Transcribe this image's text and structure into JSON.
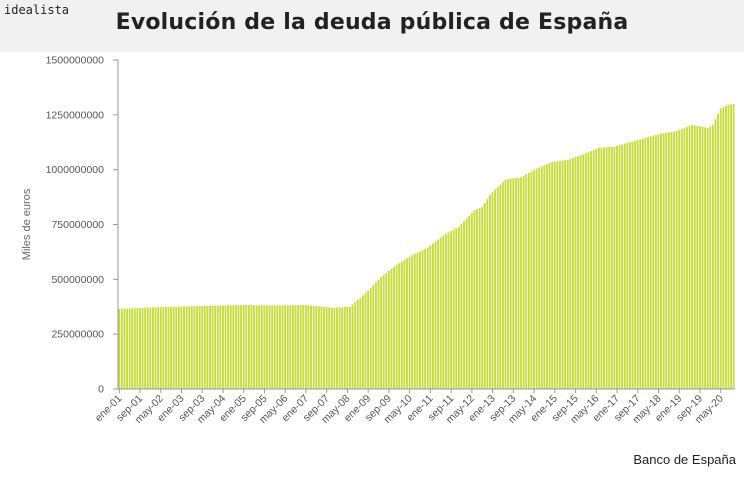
{
  "header": {
    "brand": "idealista",
    "title": "Evolución de la deuda pública de España"
  },
  "footer": {
    "source": "Banco de España"
  },
  "colors": {
    "bar": "#c5dc3a",
    "bar_edge": "#a9c22a",
    "axis": "#999999",
    "grid": "#e6e6e6"
  },
  "chart_data": {
    "type": "bar",
    "title": "Evolución de la deuda pública de España",
    "ylabel": "Miles de euros",
    "xlabel": "",
    "ylim": [
      0,
      1500000000
    ],
    "yticks": [
      0,
      250000000,
      500000000,
      750000000,
      1000000000,
      1250000000,
      1500000000
    ],
    "ytick_labels": [
      "0",
      "250000000",
      "500000000",
      "750000000",
      "1000000000",
      "1250000000",
      "1500000000"
    ],
    "x_start": "2001-01",
    "x_end": "2020-10",
    "xticks": [
      "2001-01",
      "2001-09",
      "2002-05",
      "2003-01",
      "2003-09",
      "2004-05",
      "2005-01",
      "2005-09",
      "2006-05",
      "2007-01",
      "2007-09",
      "2008-05",
      "2009-01",
      "2009-09",
      "2010-05",
      "2011-01",
      "2011-09",
      "2012-05",
      "2013-01",
      "2013-09",
      "2014-05",
      "2015-01",
      "2015-09",
      "2016-05",
      "2017-01",
      "2017-09",
      "2018-05",
      "2019-01",
      "2019-09",
      "2020-05"
    ],
    "xtick_labels": [
      "ene-01",
      "sep-01",
      "may-02",
      "ene-03",
      "sep-03",
      "may-04",
      "ene-05",
      "sep-05",
      "may-06",
      "ene-07",
      "sep-07",
      "may-08",
      "ene-09",
      "sep-09",
      "may-10",
      "ene-11",
      "sep-11",
      "may-12",
      "ene-13",
      "sep-13",
      "may-14",
      "ene-15",
      "sep-15",
      "may-16",
      "ene-17",
      "sep-17",
      "may-18",
      "ene-19",
      "sep-19",
      "may-20"
    ],
    "series_anchors": [
      [
        "2001-01",
        365000000
      ],
      [
        "2002-01",
        372000000
      ],
      [
        "2003-01",
        376000000
      ],
      [
        "2004-01",
        380000000
      ],
      [
        "2005-01",
        383000000
      ],
      [
        "2006-01",
        381000000
      ],
      [
        "2007-01",
        383000000
      ],
      [
        "2007-12",
        370000000
      ],
      [
        "2008-06",
        375000000
      ],
      [
        "2008-12",
        437000000
      ],
      [
        "2009-06",
        510000000
      ],
      [
        "2009-12",
        566000000
      ],
      [
        "2010-06",
        610000000
      ],
      [
        "2010-12",
        645000000
      ],
      [
        "2011-06",
        700000000
      ],
      [
        "2011-12",
        740000000
      ],
      [
        "2012-06",
        815000000
      ],
      [
        "2012-09",
        830000000
      ],
      [
        "2012-12",
        885000000
      ],
      [
        "2013-06",
        955000000
      ],
      [
        "2013-12",
        965000000
      ],
      [
        "2014-06",
        1005000000
      ],
      [
        "2014-12",
        1035000000
      ],
      [
        "2015-06",
        1045000000
      ],
      [
        "2015-12",
        1070000000
      ],
      [
        "2016-06",
        1100000000
      ],
      [
        "2016-12",
        1105000000
      ],
      [
        "2017-06",
        1125000000
      ],
      [
        "2017-12",
        1145000000
      ],
      [
        "2018-06",
        1165000000
      ],
      [
        "2018-12",
        1175000000
      ],
      [
        "2019-06",
        1205000000
      ],
      [
        "2019-12",
        1190000000
      ],
      [
        "2020-02",
        1205000000
      ],
      [
        "2020-05",
        1280000000
      ],
      [
        "2020-08",
        1295000000
      ],
      [
        "2020-10",
        1300000000
      ]
    ]
  }
}
